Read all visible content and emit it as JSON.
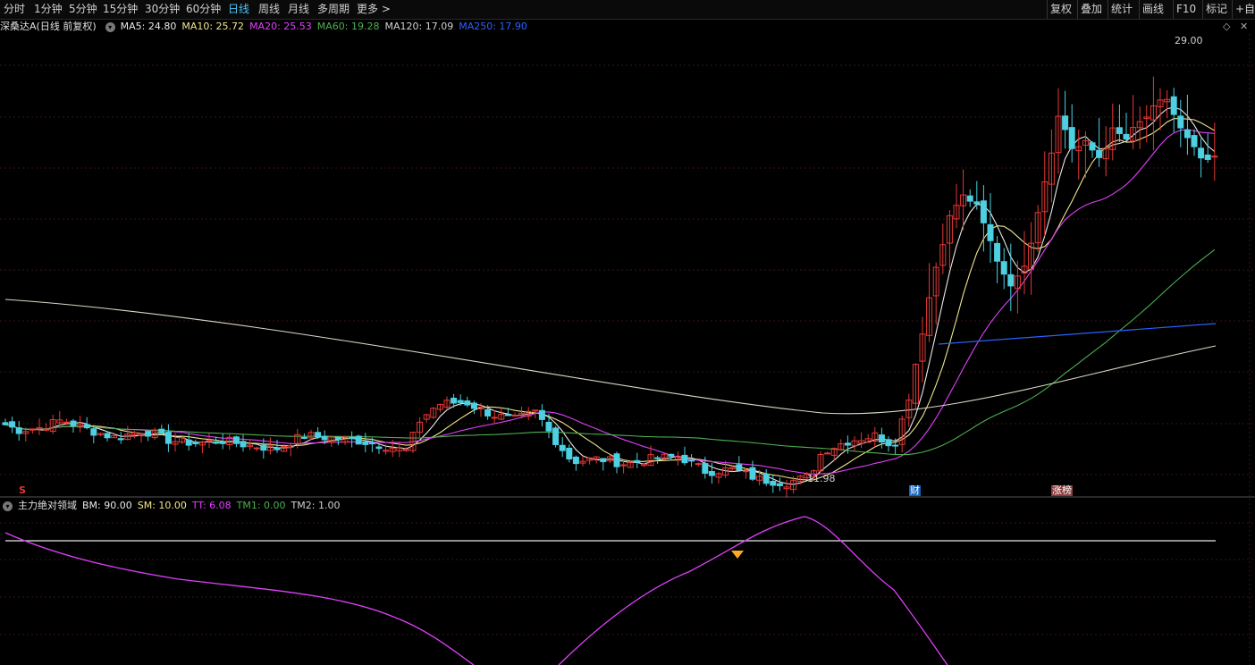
{
  "toolbar": {
    "periods": [
      "分时",
      "1分钟",
      "5分钟",
      "15分钟",
      "30分钟",
      "60分钟",
      "日线",
      "周线",
      "月线",
      "多周期",
      "更多 >"
    ],
    "active": "日线",
    "right": [
      "复权",
      "叠加",
      "统计",
      "画线",
      "F10",
      "标记",
      "+自选"
    ]
  },
  "stock": {
    "name": "深桑达A",
    "mode": "(日线 前复权)",
    "ma": [
      {
        "label": "MA5: 24.80",
        "color": "#e8e8e8"
      },
      {
        "label": "MA10: 25.72",
        "color": "#f0e68c"
      },
      {
        "label": "MA20: 25.53",
        "color": "#e040fb"
      },
      {
        "label": "MA60: 19.28",
        "color": "#4caf50"
      },
      {
        "label": "MA120: 17.09",
        "color": "#d0d0d0"
      },
      {
        "label": "MA250: 17.90",
        "color": "#2962ff"
      }
    ],
    "high_label": "29.00",
    "low_label": "11.98",
    "marker_s": "S",
    "marker_cai": "财",
    "marker_zhang": "涨榜"
  },
  "indicator": {
    "name": "主力绝对领域",
    "values": [
      {
        "label": "BM: 90.00",
        "color": "#e8e8e8"
      },
      {
        "label": "SM: 10.00",
        "color": "#f0e68c"
      },
      {
        "label": "TT: 6.08",
        "color": "#e040fb"
      },
      {
        "label": "TM1: 0.00",
        "color": "#4caf50"
      },
      {
        "label": "TM2: 1.00",
        "color": "#d0d0d0"
      }
    ]
  },
  "colors": {
    "up": "#e53935",
    "down": "#4dd0e1",
    "bg": "#000000"
  }
}
